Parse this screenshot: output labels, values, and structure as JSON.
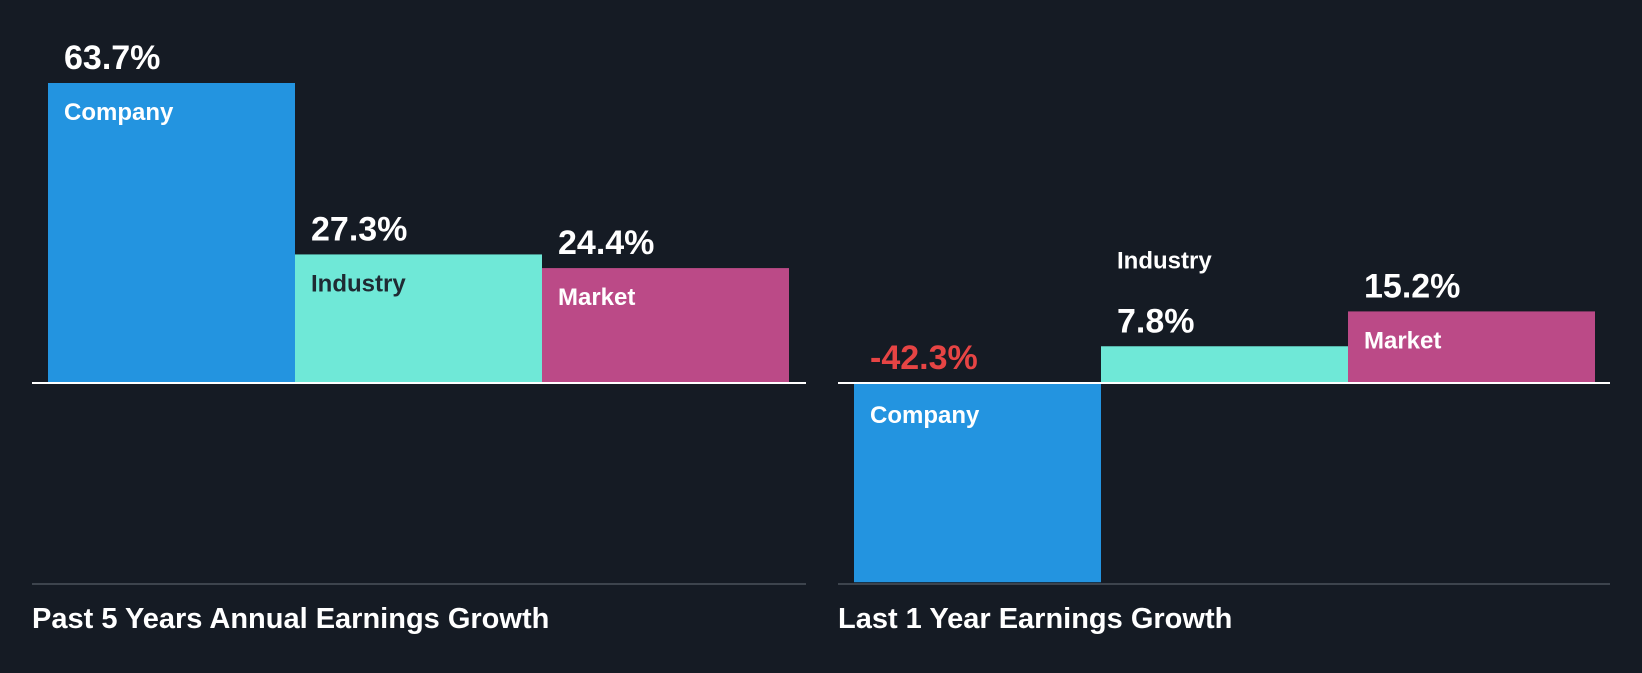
{
  "colors": {
    "background": "#151b24",
    "company": "#2394e0",
    "industry": "#6fe8d7",
    "market": "#bb4a87",
    "negative_text": "#e64444",
    "text": "#ffffff",
    "dark_text": "#1f2a33",
    "baseline": "#ffffff",
    "floor": "#3d444d"
  },
  "chart_data": [
    {
      "type": "bar",
      "title": "Past 5 Years Annual Earnings Growth",
      "categories": [
        "Company",
        "Industry",
        "Market"
      ],
      "values": [
        63.7,
        27.3,
        24.4
      ],
      "value_labels": [
        "63.7%",
        "27.3%",
        "24.4%"
      ],
      "unit": "%",
      "ylim": [
        -43,
        64
      ],
      "grid": false,
      "legend": "none"
    },
    {
      "type": "bar",
      "title": "Last 1 Year Earnings Growth",
      "categories": [
        "Company",
        "Industry",
        "Market"
      ],
      "values": [
        -42.3,
        7.8,
        15.2
      ],
      "value_labels": [
        "-42.3%",
        "7.8%",
        "15.2%"
      ],
      "unit": "%",
      "ylim": [
        -43,
        64
      ],
      "grid": false,
      "legend": "none"
    }
  ]
}
